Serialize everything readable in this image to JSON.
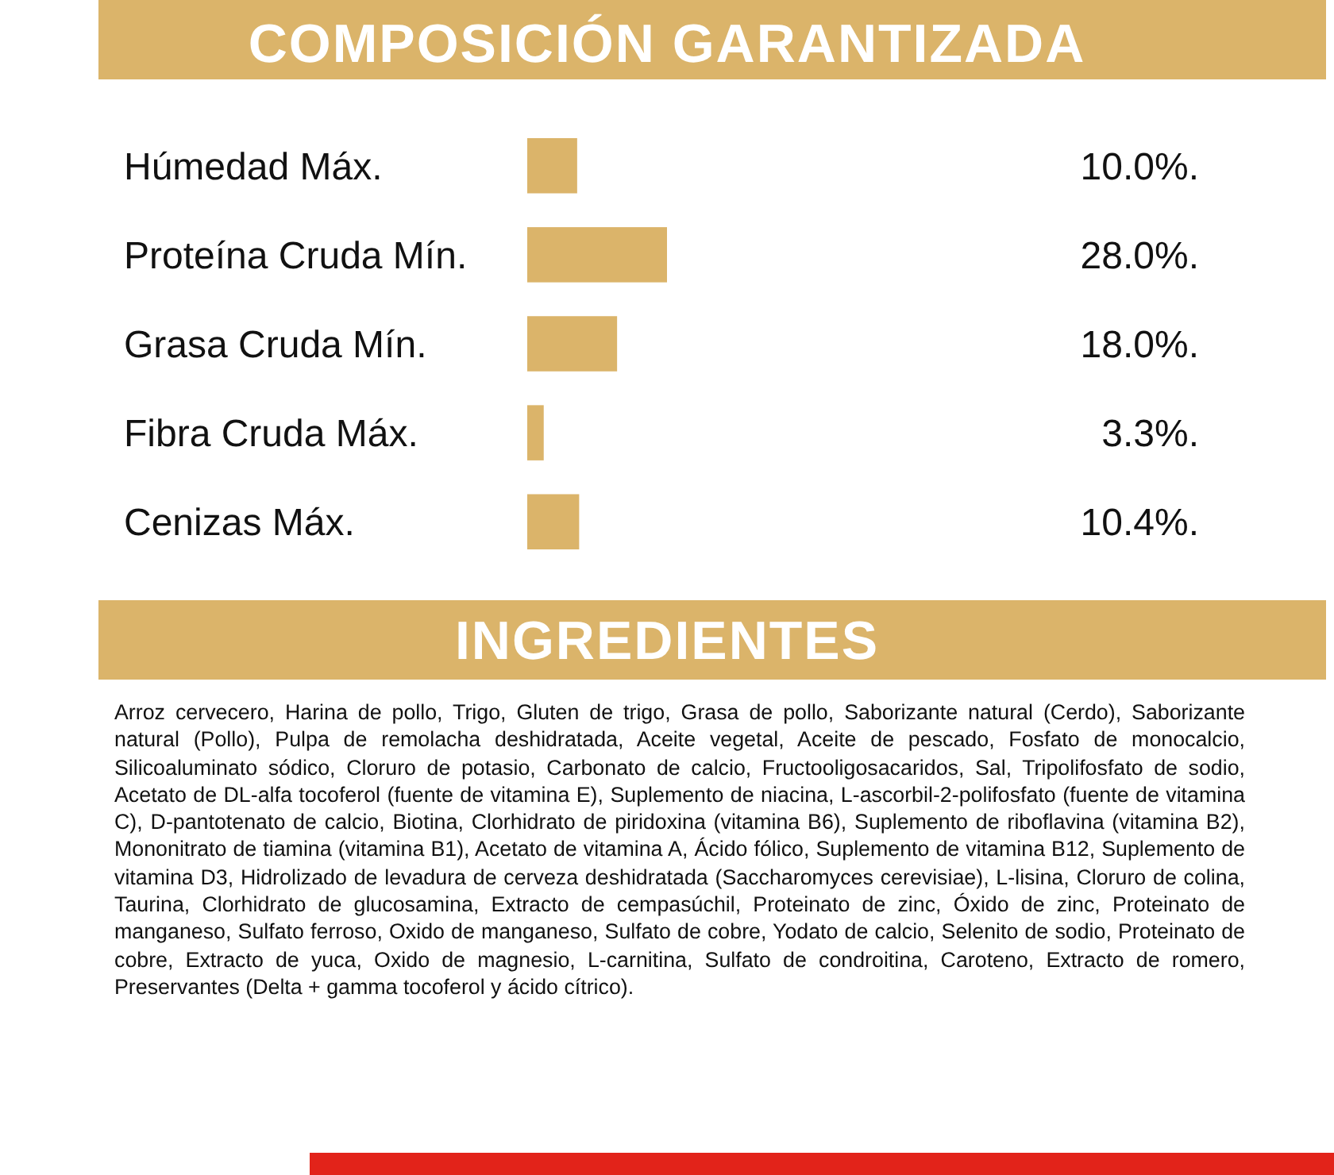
{
  "chart_data": {
    "type": "bar",
    "orientation": "horizontal",
    "title": "COMPOSICIÓN GARANTIZADA",
    "categories": [
      "Húmedad Máx.",
      "Proteína Cruda Mín.",
      "Grasa Cruda Mín.",
      "Fibra Cruda Máx.",
      "Cenizas Máx."
    ],
    "values": [
      10.0,
      28.0,
      18.0,
      3.3,
      10.4
    ],
    "value_labels": [
      "10.0%.",
      "28.0%.",
      "18.0%.",
      "3.3%.",
      "10.4%."
    ],
    "color": "#dbb46a",
    "annotations": [
      "INGREDIENTES",
      "Arroz cervecero, Harina de pollo, Trigo, Gluten de trigo, Grasa de pollo, Saborizante natural (Cerdo), Saborizante natural (Pollo), Pulpa de remolacha deshidratada, Aceite vegetal, Aceite de pescado, Fosfato de monocalcio, Silicoaluminato sódico, Cloruro de potasio, Carbonato de calcio, Fructooligosacaridos, Sal, Tripolifosfato de sodio, Acetato de DL-alfa tocoferol (fuente de vitamina E), Suplemento de niacina, L-ascorbil-2-polifosfato (fuente de vitamina C), D-pantotenato de calcio, Biotina, Clorhidrato de piridoxina (vitamina B6), Suplemento de riboflavina (vitamina B2), Mononitrato de tiamina (vitamina B1), Acetato de vitamina A, Ácido fólico, Suplemento de vitamina B12, Suplemento de vitamina D3, Hidrolizado de levadura de cerveza deshidratada (Saccharomyces cerevisiae), L-lisina, Cloruro de colina, Taurina, Clorhidrato de glucosamina, Extracto de cempasúchil, Proteinato de zinc, Óxido de zinc, Proteinato de manganeso, Sulfato ferroso, Oxido de manganeso, Sulfato de cobre, Yodato de calcio, Selenito de sodio, Proteinato de cobre, Extracto de yuca, Oxido de magnesio, L-carnitina, Sulfato de condroitina, Caroteno, Extracto de romero, Preservantes (Delta + gamma tocoferol y ácido cítrico)."
    ]
  }
}
